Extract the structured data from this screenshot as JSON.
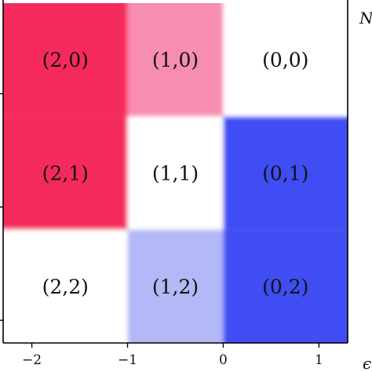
{
  "chart_data": {
    "type": "heatmap",
    "x_axis": {
      "label": "ϵ",
      "range": [
        -2.3,
        1.3
      ],
      "ticks": [
        -2,
        -1,
        0,
        1
      ],
      "tick_labels": [
        "−2",
        "−1",
        "0",
        "1"
      ]
    },
    "y_axis": {
      "label": "N",
      "range": [
        0,
        3
      ],
      "ticks": [
        0.2,
        1.2,
        2.2,
        3.2
      ]
    },
    "colors": {
      "strong_red": "#f52a5c",
      "light_red": "#f78db0",
      "strong_blue": "#3f4df2",
      "light_blue": "#b3b9f6",
      "white": "#ffffff"
    },
    "cells": [
      {
        "label": "(2,0)",
        "x0": -2.3,
        "x1": -1.0,
        "y0": 2.0,
        "y1": 3.0,
        "color": "strong_red"
      },
      {
        "label": "(1,0)",
        "x0": -1.0,
        "x1": 0.0,
        "y0": 2.0,
        "y1": 3.0,
        "color": "light_red"
      },
      {
        "label": "(0,0)",
        "x0": 0.0,
        "x1": 1.3,
        "y0": 2.0,
        "y1": 3.0,
        "color": "white"
      },
      {
        "label": "(2,1)",
        "x0": -2.3,
        "x1": -1.0,
        "y0": 1.0,
        "y1": 2.0,
        "color": "strong_red"
      },
      {
        "label": "(1,1)",
        "x0": -1.0,
        "x1": 0.0,
        "y0": 1.0,
        "y1": 2.0,
        "color": "white"
      },
      {
        "label": "(0,1)",
        "x0": 0.0,
        "x1": 1.3,
        "y0": 1.0,
        "y1": 2.0,
        "color": "strong_blue"
      },
      {
        "label": "(2,2)",
        "x0": -2.3,
        "x1": -1.0,
        "y0": 0.0,
        "y1": 1.0,
        "color": "white"
      },
      {
        "label": "(1,2)",
        "x0": -1.0,
        "x1": 0.0,
        "y0": 0.0,
        "y1": 1.0,
        "color": "light_blue"
      },
      {
        "label": "(0,2)",
        "x0": 0.0,
        "x1": 1.3,
        "y0": 0.0,
        "y1": 1.0,
        "color": "strong_blue"
      }
    ]
  }
}
